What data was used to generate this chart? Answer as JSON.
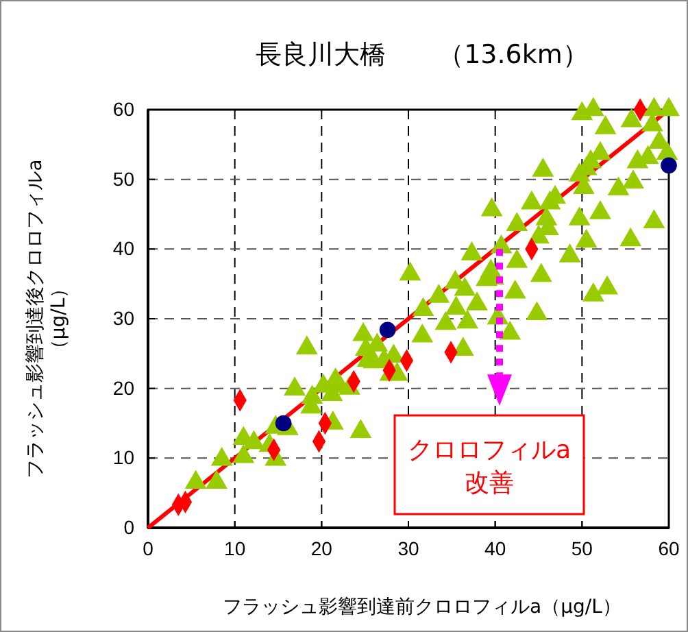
{
  "chart_data": {
    "type": "scatter",
    "title": "長良川大橋　　（13.6km）",
    "xlabel": "フラッシュ影響到達前クロロフィルa（μg/L）",
    "ylabel": "フラッシュ影響到達後クロロフィルa\n（μg/L）",
    "annotations": [
      "クロロフィルa\n改善"
    ],
    "xlim": [
      0,
      60
    ],
    "ylim": [
      0,
      60
    ],
    "xticks": [
      0,
      10,
      20,
      30,
      40,
      50,
      60
    ],
    "yticks": [
      0,
      10,
      20,
      30,
      40,
      50,
      60
    ],
    "grid": true,
    "series": [
      {
        "type": "line",
        "color": "#ff0000",
        "marker": "none",
        "line_style": "solid",
        "x": [
          0,
          60
        ],
        "values": [
          0,
          60
        ]
      },
      {
        "color": "#99cc00",
        "marker": "triangle",
        "x": [
          5.5,
          7.9,
          8.5,
          11,
          11,
          12.2,
          14,
          14.7,
          14.7,
          16.1,
          16.9,
          18.3,
          18.8,
          18.9,
          20.2,
          21.2,
          21.3,
          21.6,
          22.1,
          23.2,
          24.5,
          24.8,
          25.1,
          25.3,
          26,
          26.4,
          27.2,
          28.3,
          27.9,
          28.7,
          50,
          51.3,
          58.3,
          60,
          52.7,
          55.7,
          58.1,
          58.9,
          59.8,
          52.1,
          51,
          50.5,
          56.4,
          57.6,
          45.5,
          49.7,
          50.2,
          54.2,
          55.9,
          44.2,
          46.3,
          46.9,
          39.6,
          42.5,
          45.9,
          46.1,
          49.7,
          52.1,
          58.3,
          45,
          50.5,
          55.6,
          40.7,
          37.3,
          30.2,
          42.5,
          48.6,
          39.5,
          39.8,
          39,
          35.4,
          36.5,
          45.3,
          42.3,
          51.3,
          52.9,
          33.5,
          31.7,
          35.5,
          37.9,
          34.3,
          36.8,
          40.3,
          44.8,
          31.6,
          36.3,
          41.7
        ],
        "values": [
          6.5,
          6.5,
          9.8,
          12.8,
          10.2,
          12.2,
          11.8,
          9.8,
          14.4,
          14.2,
          19.9,
          25.8,
          17.3,
          18.7,
          20.3,
          19.1,
          15,
          21.2,
          20.3,
          20,
          13.8,
          27.7,
          25.6,
          24,
          23.8,
          26.2,
          24,
          24.6,
          22,
          22,
          59.4,
          60,
          60,
          60,
          57.4,
          58.4,
          57.8,
          55.3,
          53.7,
          53.7,
          52.5,
          51.5,
          52.5,
          53.1,
          51.3,
          50.6,
          48.8,
          48.6,
          49.6,
          46.6,
          46.6,
          47.4,
          45.6,
          43.5,
          44.3,
          42.9,
          44.3,
          45.2,
          43.9,
          41.7,
          41.1,
          41.3,
          40.3,
          39.3,
          36.4,
          38.2,
          39,
          36.8,
          35.8,
          35.6,
          35.2,
          34.2,
          36.2,
          33.8,
          33.4,
          34.4,
          33.2,
          31.3,
          31.5,
          32.1,
          29.3,
          29.5,
          30.1,
          30.7,
          27.5,
          25.6,
          27.9
        ]
      },
      {
        "color": "#ff0000",
        "marker": "diamond",
        "x": [
          3.5,
          4.3,
          10.6,
          14.5,
          19.7,
          20.4,
          23.7,
          27.8,
          29.8,
          34.9,
          44.2,
          56.7
        ],
        "values": [
          3.3,
          3.7,
          18.3,
          11.2,
          12.4,
          15,
          21,
          22.6,
          24,
          25.2,
          40,
          60
        ]
      },
      {
        "color": "#000080",
        "marker": "circle",
        "x": [
          15.6,
          27.6,
          60
        ],
        "values": [
          15,
          28.4,
          52
        ]
      }
    ]
  }
}
